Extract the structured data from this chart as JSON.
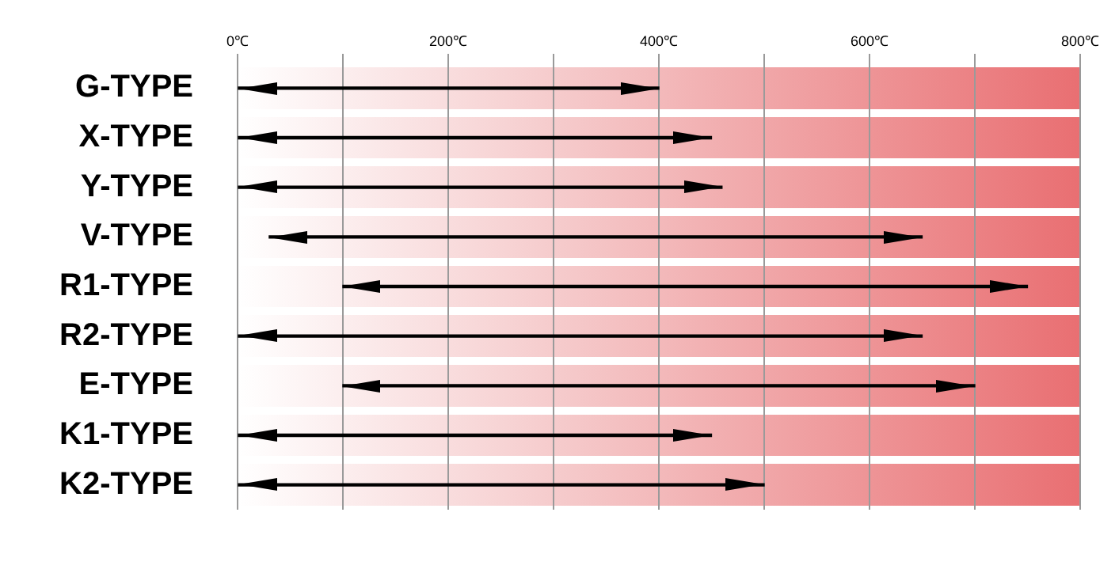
{
  "chart_data": {
    "type": "bar",
    "orientation": "horizontal",
    "categories": [
      "G-TYPE",
      "X-TYPE",
      "Y-TYPE",
      "V-TYPE",
      "R1-TYPE",
      "R2-TYPE",
      "E-TYPE",
      "K1-TYPE",
      "K2-TYPE"
    ],
    "base": [
      0,
      0,
      0,
      30,
      100,
      0,
      100,
      0,
      0
    ],
    "values": [
      400,
      450,
      460,
      620,
      650,
      650,
      600,
      450,
      500
    ],
    "color": "#000000",
    "xlim": [
      0,
      800
    ],
    "xticks": [
      {
        "value": 0,
        "label": "0℃"
      },
      {
        "value": 100,
        "label": null
      },
      {
        "value": 200,
        "label": "200℃"
      },
      {
        "value": 300,
        "label": null
      },
      {
        "value": 400,
        "label": "400℃"
      },
      {
        "value": 500,
        "label": null
      },
      {
        "value": 600,
        "label": "600℃"
      },
      {
        "value": 700,
        "label": null
      },
      {
        "value": 800,
        "label": "800℃"
      }
    ],
    "grid": "x"
  }
}
